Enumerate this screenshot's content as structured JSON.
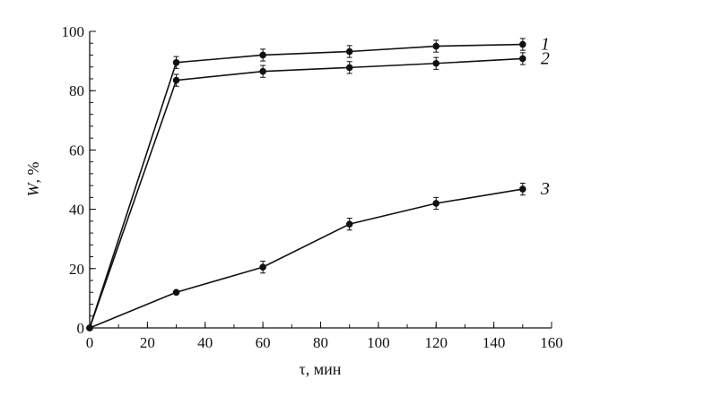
{
  "chart_data": {
    "type": "line",
    "title": "",
    "xlabel": "τ, мин",
    "ylabel_italic": "W",
    "ylabel_rest": ", %",
    "xlim": [
      0,
      160
    ],
    "ylim": [
      0,
      100
    ],
    "xticks": [
      0,
      20,
      40,
      60,
      80,
      100,
      120,
      140,
      160
    ],
    "yticks": [
      0,
      20,
      40,
      60,
      80,
      100
    ],
    "x_minor_step": 10,
    "y_minor_step": 4,
    "grid": false,
    "error_bar": 2,
    "series": [
      {
        "name": "1",
        "x": [
          0,
          30,
          60,
          90,
          120,
          150
        ],
        "values": [
          0,
          89.5,
          92,
          93.2,
          95,
          95.6
        ]
      },
      {
        "name": "2",
        "x": [
          0,
          30,
          60,
          90,
          120,
          150
        ],
        "values": [
          0,
          83.5,
          86.5,
          87.8,
          89.2,
          90.8
        ]
      },
      {
        "name": "3",
        "x": [
          0,
          30,
          60,
          90,
          120,
          150
        ],
        "values": [
          0,
          12,
          20.5,
          35,
          42,
          46.8
        ]
      }
    ]
  }
}
